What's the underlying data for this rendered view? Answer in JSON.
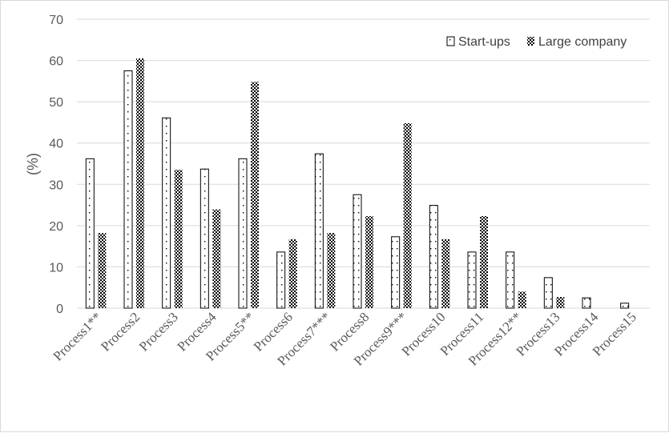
{
  "chart_data": {
    "type": "bar",
    "title": "",
    "xlabel": "",
    "ylabel": "(%)",
    "ylim": [
      0,
      70
    ],
    "yticks": [
      "0",
      "10",
      "20",
      "30",
      "40",
      "50",
      "60",
      "70"
    ],
    "grid": "horizontal",
    "legend_position": "top-right",
    "categories": [
      "Process1**",
      "Process2",
      "Process3",
      "Process4",
      "Process5**",
      "Process6",
      "Process7***",
      "Process8",
      "Process9***",
      "Process10",
      "Process11",
      "Process12**",
      "Process13",
      "Process14",
      "Process15"
    ],
    "series": [
      {
        "name": "Start-ups",
        "pattern": "dotted",
        "values": [
          36.2,
          57.5,
          46.1,
          33.7,
          36.2,
          13.6,
          37.4,
          27.5,
          17.3,
          24.9,
          13.6,
          13.6,
          7.4,
          2.5,
          1.2
        ]
      },
      {
        "name": "Large company",
        "pattern": "crosshatch",
        "values": [
          18.2,
          60.5,
          33.5,
          23.9,
          54.8,
          16.7,
          18.2,
          22.3,
          44.8,
          16.7,
          22.3,
          4.0,
          2.7,
          0,
          0
        ]
      }
    ]
  }
}
